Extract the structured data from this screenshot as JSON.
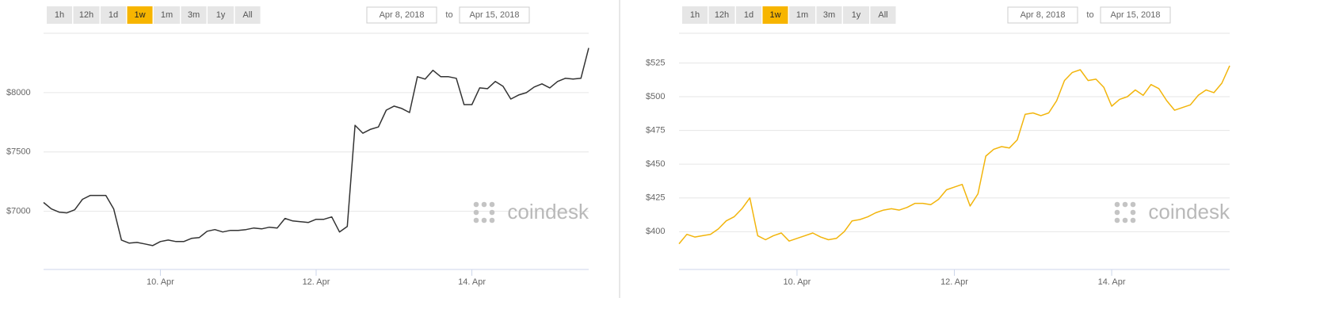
{
  "chart_data": [
    {
      "type": "line",
      "range_buttons": [
        "1h",
        "12h",
        "1d",
        "1w",
        "1m",
        "3m",
        "1y",
        "All"
      ],
      "active_button": 3,
      "date_from": "Apr 8, 2018",
      "to_label": "to",
      "date_to": "Apr 15, 2018",
      "watermark": "coindesk",
      "color": "#333333",
      "x": [
        8.5,
        8.6,
        8.7,
        8.8,
        8.9,
        9.0,
        9.1,
        9.2,
        9.3,
        9.4,
        9.5,
        9.6,
        9.7,
        9.8,
        9.9,
        10.0,
        10.1,
        10.2,
        10.3,
        10.4,
        10.5,
        10.6,
        10.7,
        10.8,
        10.9,
        11.0,
        11.1,
        11.2,
        11.3,
        11.4,
        11.5,
        11.6,
        11.7,
        11.8,
        11.9,
        12.0,
        12.1,
        12.2,
        12.3,
        12.4,
        12.5,
        12.6,
        12.7,
        12.8,
        12.9,
        13.0,
        13.1,
        13.2,
        13.3,
        13.4,
        13.5,
        13.6,
        13.7,
        13.8,
        13.9,
        14.0,
        14.1,
        14.2,
        14.3,
        14.4,
        14.5,
        14.6,
        14.7,
        14.8,
        14.9,
        15.0,
        15.1,
        15.2,
        15.3,
        15.4,
        15.5
      ],
      "values": [
        7074,
        7020,
        6993,
        6987,
        7013,
        7101,
        7134,
        7134,
        7134,
        7020,
        6758,
        6732,
        6738,
        6725,
        6711,
        6745,
        6758,
        6745,
        6745,
        6772,
        6779,
        6832,
        6846,
        6826,
        6839,
        6839,
        6846,
        6859,
        6852,
        6866,
        6859,
        6940,
        6919,
        6913,
        6906,
        6933,
        6933,
        6953,
        6826,
        6872,
        7725,
        7658,
        7691,
        7711,
        7852,
        7886,
        7866,
        7832,
        8134,
        8114,
        8188,
        8134,
        8134,
        8121,
        7899,
        7899,
        8040,
        8033,
        8094,
        8053,
        7946,
        7980,
        8000,
        8047,
        8074,
        8040,
        8094,
        8121,
        8114,
        8121,
        8376
      ],
      "xlim": [
        8.5,
        15.5
      ],
      "xticks": [
        {
          "value": 10,
          "label": "10. Apr"
        },
        {
          "value": 12,
          "label": "12. Apr"
        },
        {
          "value": 14,
          "label": "14. Apr"
        }
      ],
      "ylim": [
        6510,
        8500
      ],
      "yticks": [
        {
          "value": 7000,
          "label": "$7000"
        },
        {
          "value": 7500,
          "label": "$7500"
        },
        {
          "value": 8000,
          "label": "$8000"
        }
      ],
      "grid": true
    },
    {
      "type": "line",
      "range_buttons": [
        "1h",
        "12h",
        "1d",
        "1w",
        "1m",
        "3m",
        "1y",
        "All"
      ],
      "active_button": 3,
      "date_from": "Apr 8, 2018",
      "to_label": "to",
      "date_to": "Apr 15, 2018",
      "watermark": "coindesk",
      "color": "#f2b50c",
      "x": [
        8.5,
        8.6,
        8.7,
        8.8,
        8.9,
        9.0,
        9.1,
        9.2,
        9.3,
        9.4,
        9.5,
        9.6,
        9.7,
        9.8,
        9.9,
        10.0,
        10.1,
        10.2,
        10.3,
        10.4,
        10.5,
        10.6,
        10.7,
        10.8,
        10.9,
        11.0,
        11.1,
        11.2,
        11.3,
        11.4,
        11.5,
        11.6,
        11.7,
        11.8,
        11.9,
        12.0,
        12.1,
        12.2,
        12.3,
        12.4,
        12.5,
        12.6,
        12.7,
        12.8,
        12.9,
        13.0,
        13.1,
        13.2,
        13.3,
        13.4,
        13.5,
        13.6,
        13.7,
        13.8,
        13.9,
        14.0,
        14.1,
        14.2,
        14.3,
        14.4,
        14.5,
        14.6,
        14.7,
        14.8,
        14.9,
        15.0,
        15.1,
        15.2,
        15.3,
        15.4,
        15.5
      ],
      "values": [
        391,
        398,
        396,
        397,
        398,
        402,
        408,
        411,
        417,
        425,
        397,
        394,
        397,
        399,
        393,
        395,
        397,
        399,
        396,
        394,
        395,
        400,
        408,
        409,
        411,
        414,
        416,
        417,
        416,
        418,
        421,
        421,
        420,
        424,
        431,
        433,
        435,
        419,
        428,
        456,
        461,
        463,
        462,
        468,
        487,
        488,
        486,
        488,
        497,
        512,
        518,
        520,
        512,
        513,
        507,
        493,
        498,
        500,
        505,
        501,
        509,
        506,
        497,
        490,
        492,
        494,
        501,
        505,
        503,
        510,
        523
      ],
      "xlim": [
        8.5,
        15.5
      ],
      "xticks": [
        {
          "value": 10,
          "label": "10. Apr"
        },
        {
          "value": 12,
          "label": "12. Apr"
        },
        {
          "value": 14,
          "label": "14. Apr"
        }
      ],
      "ylim": [
        372,
        547
      ],
      "yticks": [
        {
          "value": 400,
          "label": "$400"
        },
        {
          "value": 425,
          "label": "$425"
        },
        {
          "value": 450,
          "label": "$450"
        },
        {
          "value": 475,
          "label": "$475"
        },
        {
          "value": 500,
          "label": "$500"
        },
        {
          "value": 525,
          "label": "$525"
        }
      ],
      "grid": true
    }
  ]
}
